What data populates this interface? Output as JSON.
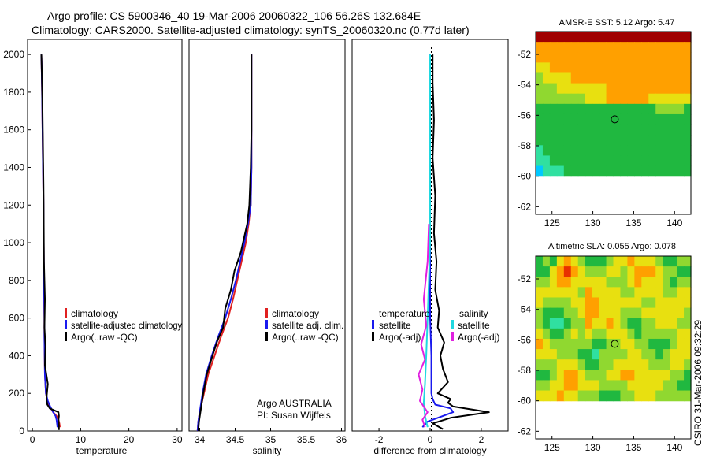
{
  "header": {
    "line1": "Argo profile: CS 5900346_40 19-Mar-2006 20060322_106 56.26S 132.684E",
    "line2": "Climatology: CARS2000. Satellite-adjusted climatology: synTS_20060320.nc (0.77d later)"
  },
  "colors": {
    "climatology": "#e02020",
    "satellite": "#1a1aee",
    "argo": "#000000",
    "salinity_satellite": "#20d8e0",
    "salinity_argo": "#e020e0",
    "map_blank": "#ffffff"
  },
  "credit": "CSIRO 31-Mar-2006 09:32:29",
  "chart_data": [
    {
      "type": "line",
      "id": "temperature",
      "xlabel": "temperature",
      "xlim": [
        -1,
        31
      ],
      "xticks": [
        0,
        10,
        20,
        30
      ],
      "xtick_labels": [
        "0",
        "10",
        "20",
        "30"
      ],
      "ylim": [
        2080,
        0
      ],
      "yticks": [
        0,
        200,
        400,
        600,
        800,
        1000,
        1200,
        1400,
        1600,
        1800,
        2000
      ],
      "ytick_labels": [
        "0",
        "200",
        "400",
        "600",
        "800",
        "1000",
        "1200",
        "1400",
        "1600",
        "1800",
        "2000"
      ],
      "series": [
        {
          "name": "climatology",
          "color_key": "climatology",
          "x": [
            5.7,
            5.6,
            5.4,
            5.0,
            4.3,
            3.6,
            3.1,
            2.8,
            2.6,
            2.55,
            2.5,
            2.5,
            2.4,
            2.35,
            2.3,
            2.2,
            2.1,
            2.0,
            1.9,
            1.85
          ],
          "y": [
            20,
            40,
            60,
            80,
            100,
            130,
            160,
            200,
            300,
            400,
            500,
            600,
            800,
            1000,
            1200,
            1400,
            1600,
            1800,
            1950,
            2000
          ]
        },
        {
          "name": "satellite-adjusted climatology",
          "color_key": "satellite",
          "x": [
            5.2,
            5.1,
            5.0,
            4.8,
            4.3,
            3.7,
            3.2,
            2.8,
            2.6,
            2.55,
            2.5,
            2.5,
            2.4,
            2.35,
            2.3,
            2.2,
            2.1,
            2.0,
            1.9,
            1.85
          ],
          "y": [
            20,
            40,
            60,
            80,
            100,
            130,
            160,
            200,
            300,
            400,
            500,
            600,
            800,
            1000,
            1200,
            1400,
            1600,
            1800,
            1950,
            2000
          ]
        },
        {
          "name": "Argo(..raw -QC)",
          "color_key": "argo",
          "x": [
            5.5,
            5.5,
            5.4,
            5.5,
            5.4,
            3.6,
            3.1,
            2.9,
            3.2,
            2.6,
            2.7,
            2.5,
            2.6,
            2.4,
            2.35,
            2.3,
            2.2,
            2.1,
            2.0,
            1.9,
            1.85
          ],
          "y": [
            5,
            30,
            60,
            80,
            100,
            120,
            140,
            170,
            250,
            350,
            450,
            550,
            700,
            900,
            1100,
            1300,
            1500,
            1700,
            1850,
            1950,
            2000
          ]
        }
      ],
      "legend": [
        "climatology",
        "satellite-adjusted climatology",
        "Argo(..raw -QC)"
      ]
    },
    {
      "type": "line",
      "id": "salinity",
      "xlabel": "salinity",
      "xlim": [
        33.85,
        36.05
      ],
      "xticks": [
        34,
        34.5,
        35,
        35.5,
        36
      ],
      "xtick_labels": [
        "34",
        "34.5",
        "35",
        "35.5",
        "36"
      ],
      "ylim": [
        2080,
        0
      ],
      "series": [
        {
          "name": "climatology",
          "color_key": "climatology",
          "x": [
            33.97,
            33.98,
            34.0,
            34.06,
            34.12,
            34.21,
            34.3,
            34.4,
            34.47,
            34.53,
            34.59,
            34.65,
            34.69,
            34.72,
            34.73,
            34.73,
            34.73
          ],
          "y": [
            0,
            50,
            100,
            200,
            300,
            400,
            500,
            600,
            700,
            800,
            900,
            1000,
            1100,
            1200,
            1400,
            1600,
            2000
          ]
        },
        {
          "name": "satellite adj. clim.",
          "color_key": "satellite",
          "x": [
            33.97,
            33.98,
            34.0,
            34.04,
            34.09,
            34.17,
            34.26,
            34.36,
            34.44,
            34.51,
            34.57,
            34.63,
            34.68,
            34.72,
            34.73,
            34.73,
            34.73
          ],
          "y": [
            0,
            50,
            100,
            200,
            300,
            400,
            500,
            600,
            700,
            800,
            900,
            1000,
            1100,
            1200,
            1400,
            1600,
            2000
          ]
        },
        {
          "name": "Argo(..raw -QC)",
          "color_key": "argo",
          "x": [
            33.98,
            33.99,
            34.01,
            34.05,
            34.1,
            34.18,
            34.25,
            34.33,
            34.36,
            34.44,
            34.49,
            34.58,
            34.61,
            34.67,
            34.7,
            34.72,
            34.73,
            34.73
          ],
          "y": [
            0,
            50,
            100,
            200,
            300,
            400,
            480,
            550,
            650,
            750,
            850,
            950,
            1000,
            1100,
            1200,
            1400,
            1600,
            2000
          ]
        }
      ],
      "legend": [
        "climatology",
        "satellite adj. clim.",
        "Argo(..raw -QC)"
      ],
      "annotation": [
        "Argo AUSTRALIA",
        "PI: Susan Wijffels"
      ]
    },
    {
      "type": "line",
      "id": "difference",
      "xlabel": "difference from climatology",
      "xlim": [
        -3.05,
        3.05
      ],
      "xticks": [
        -2,
        0,
        2
      ],
      "xtick_labels": [
        "-2",
        "0",
        "2"
      ],
      "ylim": [
        2080,
        0
      ],
      "series": [
        {
          "name": "temperature satellite",
          "color_key": "satellite",
          "x": [
            -0.3,
            -0.1,
            0.5,
            0.9,
            0.8,
            0.2,
            0.1,
            0.05,
            0.05,
            0.0,
            0.0,
            0.0,
            0.0,
            0.0
          ],
          "y": [
            20,
            50,
            80,
            100,
            120,
            140,
            170,
            200,
            400,
            600,
            1000,
            1400,
            1800,
            2000
          ]
        },
        {
          "name": "temperature Argo(-adj)",
          "color_key": "argo",
          "x": [
            0.5,
            0.1,
            0.8,
            2.3,
            0.9,
            0.7,
            0.8,
            0.3,
            0.7,
            0.5,
            0.4,
            0.55,
            0.3,
            0.35,
            0.2,
            0.25,
            0.15,
            0.2,
            0.1,
            0.15,
            0.1,
            0.1
          ],
          "y": [
            10,
            40,
            70,
            100,
            130,
            150,
            170,
            200,
            260,
            330,
            400,
            470,
            550,
            640,
            750,
            900,
            1050,
            1250,
            1450,
            1650,
            1850,
            2000
          ]
        },
        {
          "name": "salinity satellite",
          "color_key": "salinity_satellite",
          "x": [
            -0.1,
            -0.2,
            -0.25,
            -0.2,
            -0.15,
            -0.1,
            -0.05,
            0.0,
            0.0,
            0.0,
            0.0
          ],
          "y": [
            20,
            80,
            150,
            250,
            400,
            600,
            800,
            1000,
            1400,
            1800,
            2000
          ]
        },
        {
          "name": "salinity Argo(-adj)",
          "color_key": "salinity_argo",
          "x": [
            -0.2,
            -0.3,
            -0.1,
            -0.4,
            -0.3,
            -0.45,
            -0.2,
            -0.35,
            -0.15,
            -0.25,
            -0.1,
            -0.05
          ],
          "y": [
            20,
            60,
            100,
            160,
            220,
            300,
            380,
            460,
            560,
            700,
            900,
            1100
          ]
        }
      ],
      "legend_temperature": {
        "heading": "temperature",
        "items": [
          "satellite",
          "Argo(-adj)"
        ]
      },
      "legend_salinity": {
        "heading": "salinity",
        "items": [
          "satellite",
          "Argo(-adj)"
        ]
      }
    },
    {
      "type": "heatmap",
      "id": "sst_map",
      "title": "AMSR-E SST: 5.12  Argo: 5.47",
      "xlim": [
        123,
        142
      ],
      "ylim": [
        -62.5,
        -50.5
      ],
      "data_extent": {
        "lon": [
          123,
          142
        ],
        "lat": [
          -60,
          -50.5
        ]
      },
      "xticks": [
        125,
        130,
        135,
        140
      ],
      "xtick_labels": [
        "125",
        "130",
        "135",
        "140"
      ],
      "yticks": [
        -52,
        -54,
        -56,
        -58,
        -60,
        -62
      ],
      "ytick_labels": [
        "-52",
        "-54",
        "-56",
        "-58",
        "-60",
        "-62"
      ],
      "float_position": {
        "lon": 132.684,
        "lat": -56.26
      },
      "palette": [
        "#0000b0",
        "#0058ff",
        "#00c8ff",
        "#30e0a0",
        "#20b840",
        "#90d830",
        "#e8e010",
        "#ffa000",
        "#e83000",
        "#a00000"
      ],
      "grid_rows": [
        "9999999999999999999999",
        "7777777777777777777777",
        "7777777777777777777777",
        "6677777777777777777777",
        "5666677777777777777777",
        "5556666666777777777777",
        "5555555666777777666666",
        "4444444444444444455554",
        "4444444444444444444444",
        "4444444444444444444444",
        "4444444444444444444444",
        "3444444444444444444444",
        "3344444444444444444444",
        "2333444444444444444444"
      ]
    },
    {
      "type": "heatmap",
      "id": "sla_map",
      "title": "Altimetric SLA: 0.055  Argo: 0.078",
      "xlim": [
        123,
        142
      ],
      "ylim": [
        -62.5,
        -50.5
      ],
      "data_extent": {
        "lon": [
          123,
          142
        ],
        "lat": [
          -60,
          -50.5
        ]
      },
      "xticks": [
        125,
        130,
        135,
        140
      ],
      "xtick_labels": [
        "125",
        "130",
        "135",
        "140"
      ],
      "yticks": [
        -52,
        -54,
        -56,
        -58,
        -60,
        -62
      ],
      "ytick_labels": [
        "-52",
        "-54",
        "-56",
        "-58",
        "-60",
        "-62"
      ],
      "float_position": {
        "lon": 132.684,
        "lat": -56.26
      },
      "palette": [
        "#0000b0",
        "#0058ff",
        "#00c8ff",
        "#30e0a0",
        "#20b840",
        "#90d830",
        "#e8e010",
        "#ffa000",
        "#e83000",
        "#a00000"
      ],
      "grid_rows": [
        "4546765444566766654455",
        "4467876555665677765544",
        "5567766666555676665455",
        "6666665766665566665566",
        "6555566776666665566666",
        "5444556776665556666665",
        "5433455766765445566655",
        "6544565655666545555566",
        "7655555544556655444566",
        "6665554435555665545666",
        "5556665445566666555665",
        "4456776555667766666554",
        "5566776665555666665544",
        "6667665554445566655555"
      ]
    }
  ]
}
